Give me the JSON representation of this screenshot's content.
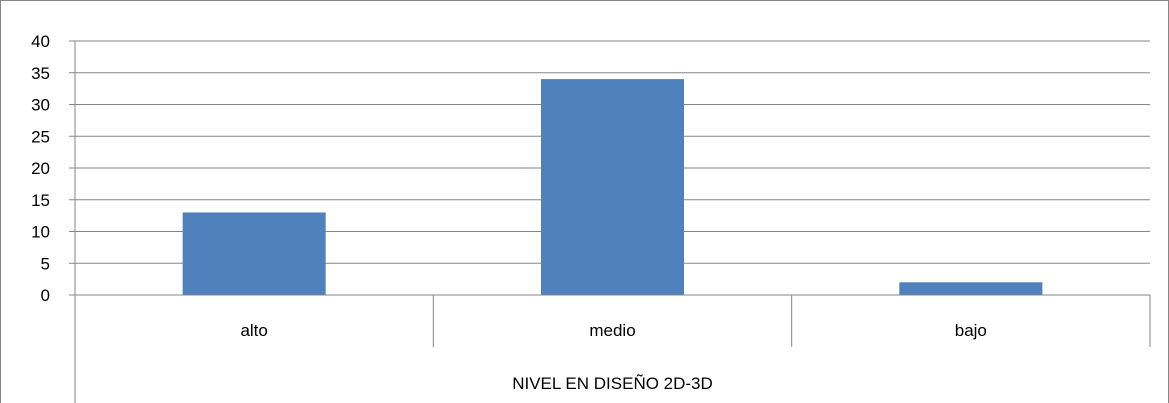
{
  "chart_data": {
    "type": "bar",
    "categories": [
      "alto",
      "medio",
      "bajo"
    ],
    "values": [
      13,
      34,
      2
    ],
    "group_label": "NIVEL EN DISEÑO 2D-3D",
    "title": "",
    "xlabel": "",
    "ylabel": "",
    "ylim": [
      0,
      40
    ],
    "yticks": [
      0,
      5,
      10,
      15,
      20,
      25,
      30,
      35,
      40
    ],
    "grid": true,
    "legend": "none",
    "bar_color": "#4F81BD",
    "grid_color": "#868686",
    "axis_color": "#868686"
  }
}
